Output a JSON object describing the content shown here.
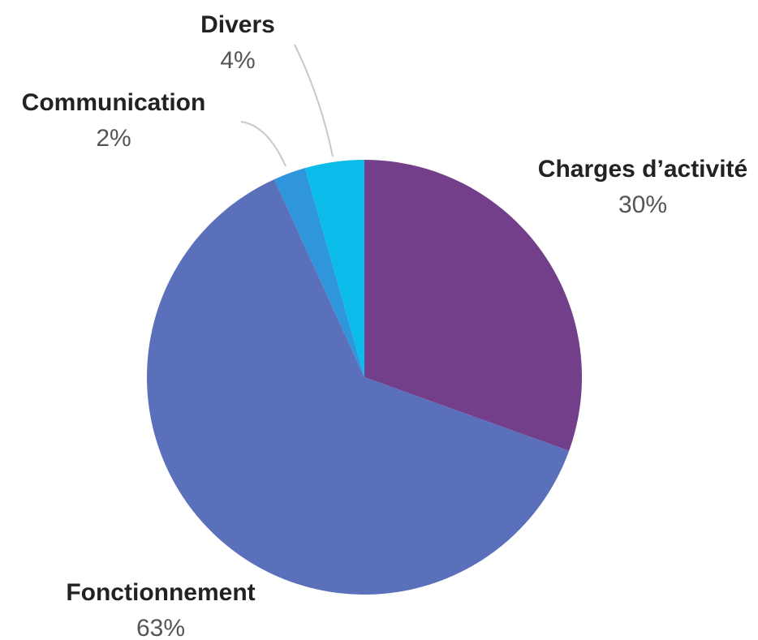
{
  "chart_data": {
    "type": "pie",
    "start_angle_deg": 0,
    "direction": "clockwise",
    "slices": [
      {
        "label": "Charges d’activité",
        "value": 30.5,
        "value_label": "30%",
        "color": "#733f8b"
      },
      {
        "label": "Fonctionnement",
        "value": 62.7,
        "value_label": "63%",
        "color": "#5b70bb"
      },
      {
        "label": "Communication",
        "value": 2.4,
        "value_label": "2%",
        "color": "#3096dc"
      },
      {
        "label": "Divers",
        "value": 4.4,
        "value_label": "4%",
        "color": "#0bbbe9"
      }
    ]
  }
}
